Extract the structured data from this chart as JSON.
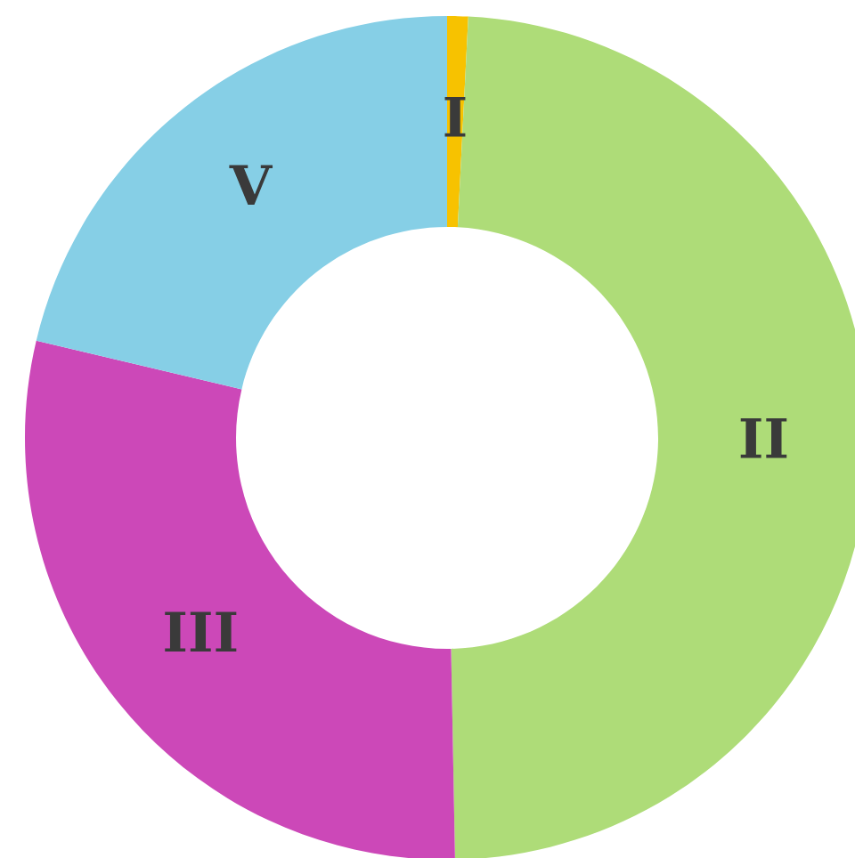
{
  "chart_data": {
    "type": "donut",
    "categories": [
      "I",
      "II",
      "III",
      "V"
    ],
    "values": [
      0.8,
      48.9,
      29.0,
      21.3
    ],
    "colors": [
      "#f7c200",
      "#aedc78",
      "#cc48b8",
      "#86cfe6"
    ]
  }
}
